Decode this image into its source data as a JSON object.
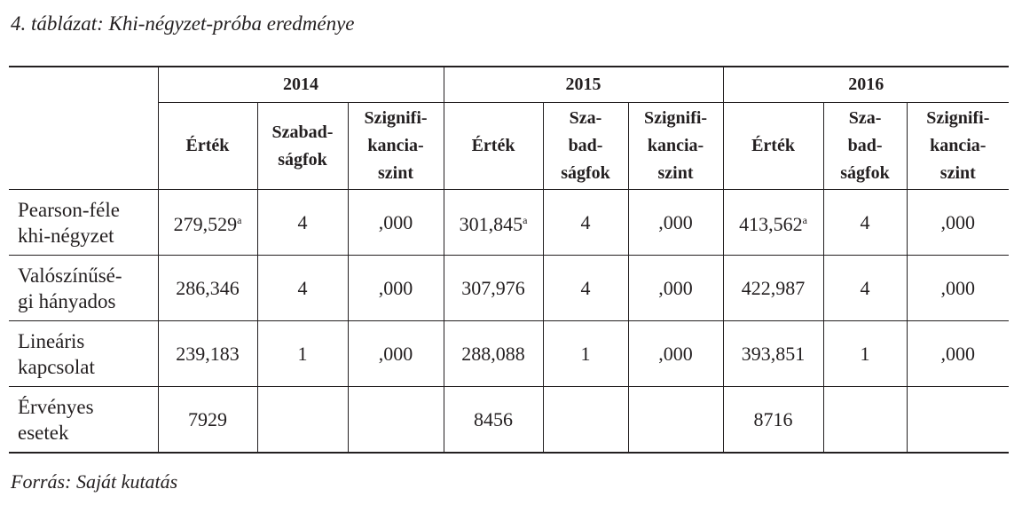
{
  "caption": "4. táblázat: Khi-négyzet-próba eredménye",
  "table": {
    "years": [
      "2014",
      "2015",
      "2016"
    ],
    "subheaders": [
      [
        "Érték",
        "Szabad-\nságfok",
        "Szignifi-\nkancia-\nszint"
      ],
      [
        "Érték",
        "Sza-\nbad-\nságfok",
        "Szignifi-\nkancia-\nszint"
      ],
      [
        "Érték",
        "Sza-\nbad-\nságfok",
        "Szignifi-\nkancia-\nszint"
      ]
    ],
    "rows": [
      {
        "label": "Pearson-féle\nkhi-négyzet",
        "cells": [
          {
            "text": "279,529",
            "sup": "a"
          },
          "4",
          ",000",
          {
            "text": "301,845",
            "sup": "a"
          },
          "4",
          ",000",
          {
            "text": "413,562",
            "sup": "a"
          },
          "4",
          ",000"
        ]
      },
      {
        "label": "Valószínűsé-\ngi hányados",
        "cells": [
          "286,346",
          "4",
          ",000",
          "307,976",
          "4",
          ",000",
          "422,987",
          "4",
          ",000"
        ]
      },
      {
        "label": "Lineáris\nkapcsolat",
        "cells": [
          "239,183",
          "1",
          ",000",
          "288,088",
          "1",
          ",000",
          "393,851",
          "1",
          ",000"
        ]
      },
      {
        "label": "Érvényes\nesetek",
        "cells": [
          "7929",
          null,
          null,
          "8456",
          null,
          null,
          "8716",
          null,
          null
        ]
      }
    ]
  },
  "source": "Forrás: Saját kutatás"
}
